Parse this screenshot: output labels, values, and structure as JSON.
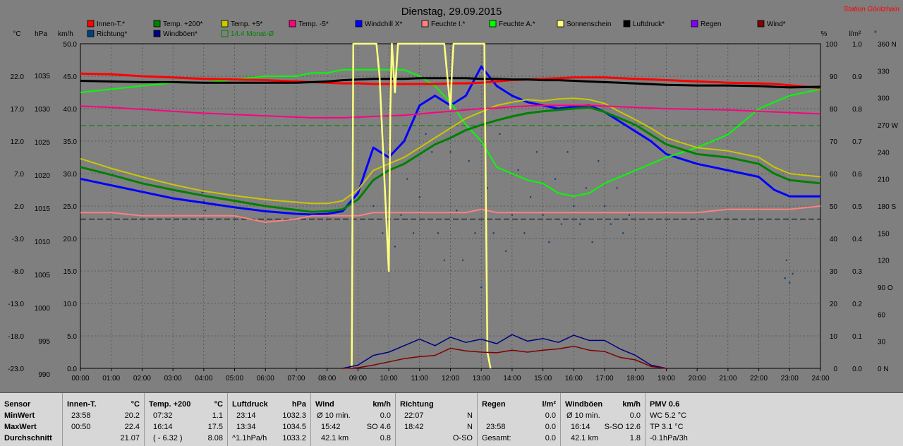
{
  "title": "Dienstag, 29.09.2015",
  "station": "Station Göritzhain",
  "axis_units": {
    "celsius": "°C",
    "hpa": "hPa",
    "kmh": "km/h",
    "percent": "%",
    "lm2": "l/m²",
    "deg": "°"
  },
  "left_axes": {
    "celsius": [
      "22.0",
      "17.0",
      "12.0",
      "7.0",
      "2.0",
      "-3.0",
      "-8.0",
      "-13.0",
      "-18.0",
      "-23.0"
    ],
    "hpa": [
      "1035",
      "1030",
      "1025",
      "1020",
      "1015",
      "1010",
      "1005",
      "1000",
      "995",
      "990"
    ],
    "kmh": [
      "50.0",
      "45.0",
      "40.0",
      "35.0",
      "30.0",
      "25.0",
      "20.0",
      "15.0",
      "10.0",
      "5.0",
      "0.0"
    ]
  },
  "right_axes": {
    "percent": [
      "100",
      "90",
      "80",
      "70",
      "60",
      "50",
      "40",
      "30",
      "20",
      "10",
      "0"
    ],
    "lm2": [
      "1.0",
      "0.9",
      "0.8",
      "0.7",
      "0.6",
      "0.5",
      "0.4",
      "0.3",
      "0.2",
      "0.1",
      "0.0"
    ],
    "deg": [
      "360 N",
      "330",
      "300",
      "270 W",
      "240",
      "210",
      "180 S",
      "150",
      "120",
      "90 O",
      "60",
      "30",
      "0 N"
    ]
  },
  "x_ticks": [
    "00:00",
    "01:00",
    "02:00",
    "03:00",
    "04:00",
    "05:00",
    "06:00",
    "07:00",
    "08:00",
    "09:00",
    "10:00",
    "11:00",
    "12:00",
    "13:00",
    "14:00",
    "15:00",
    "16:00",
    "17:00",
    "18:00",
    "19:00",
    "20:00",
    "21:00",
    "22:00",
    "23:00",
    "24:00"
  ],
  "legend": [
    {
      "name": "Innen-T.*",
      "color": "#ff0000"
    },
    {
      "name": "Temp. +200*",
      "color": "#008000"
    },
    {
      "name": "Temp. +5*",
      "color": "#c8c800"
    },
    {
      "name": "Temp. -5*",
      "color": "#ff0080"
    },
    {
      "name": "Windchill X*",
      "color": "#0000ff"
    },
    {
      "name": "Feuchte I.*",
      "color": "#ff8080"
    },
    {
      "name": "Feuchte A.*",
      "color": "#00ff00"
    },
    {
      "name": "Sonnenschein",
      "color": "#ffff80"
    },
    {
      "name": "Luftdruck*",
      "color": "#000000"
    },
    {
      "name": "Regen",
      "color": "#8000ff"
    },
    {
      "name": "Wind*",
      "color": "#800000"
    },
    {
      "name": "Richtung*",
      "color": "#004080"
    },
    {
      "name": "Windböen*",
      "color": "#000080"
    },
    {
      "name": "14.4 Monat-Ø",
      "color": "#008000"
    }
  ],
  "chart_data": {
    "type": "line",
    "title": "Dienstag, 29.09.2015",
    "xlabel": "",
    "ylabel": "°C",
    "x_hours": [
      0,
      1,
      2,
      3,
      4,
      5,
      6,
      7,
      7.5,
      8,
      8.5,
      9,
      9.5,
      10,
      10.5,
      11,
      11.5,
      12,
      12.5,
      13,
      13.5,
      14,
      14.5,
      15,
      15.5,
      16,
      16.5,
      17,
      17.5,
      18,
      18.5,
      19,
      20,
      21,
      22,
      22.5,
      23,
      24
    ],
    "ylim": [
      -23,
      27
    ],
    "series": [
      {
        "name": "Innen-T.*",
        "color": "#ff0000",
        "unit": "°C",
        "values": [
          22.4,
          22.3,
          22.0,
          21.8,
          21.6,
          21.5,
          21.4,
          21.2,
          21.1,
          21.0,
          20.9,
          20.9,
          20.8,
          20.8,
          20.8,
          20.8,
          20.8,
          20.9,
          20.9,
          21.0,
          21.2,
          21.4,
          21.5,
          21.6,
          21.7,
          21.8,
          21.8,
          21.8,
          21.7,
          21.6,
          21.5,
          21.4,
          21.2,
          21.0,
          20.9,
          20.8,
          20.6,
          20.2
        ]
      },
      {
        "name": "Temp. +200*",
        "color": "#008000",
        "unit": "°C",
        "values": [
          8.0,
          6.8,
          5.5,
          4.5,
          3.6,
          2.8,
          2.0,
          1.4,
          1.1,
          1.2,
          1.5,
          3.0,
          6.0,
          7.5,
          8.5,
          10.0,
          11.5,
          12.5,
          13.7,
          14.5,
          15.2,
          15.8,
          16.3,
          16.6,
          16.8,
          17.0,
          17.2,
          16.5,
          15.5,
          14.5,
          13.0,
          11.5,
          10.0,
          9.5,
          8.5,
          7.0,
          6.0,
          5.5
        ]
      },
      {
        "name": "Temp. +5*",
        "color": "#c8c800",
        "unit": "°C",
        "values": [
          9.3,
          7.8,
          6.5,
          5.3,
          4.3,
          3.6,
          3.0,
          2.6,
          2.4,
          2.4,
          2.8,
          4.5,
          7.5,
          8.5,
          9.5,
          11.0,
          12.5,
          14.0,
          15.5,
          16.5,
          17.5,
          18.0,
          18.4,
          18.2,
          18.5,
          18.6,
          18.4,
          17.8,
          16.5,
          15.3,
          14.0,
          12.5,
          11.0,
          10.5,
          9.5,
          8.0,
          7.0,
          6.5
        ]
      },
      {
        "name": "Temp. -5*",
        "color": "#ff0080",
        "unit": "°C",
        "values": [
          17.4,
          17.2,
          16.9,
          16.6,
          16.3,
          16.1,
          15.9,
          15.7,
          15.6,
          15.6,
          15.6,
          15.7,
          15.8,
          15.9,
          16.0,
          16.2,
          16.4,
          16.6,
          16.8,
          17.0,
          17.1,
          17.3,
          17.4,
          17.5,
          17.5,
          17.5,
          17.5,
          17.4,
          17.3,
          17.2,
          17.1,
          17.0,
          16.9,
          16.8,
          16.6,
          16.5,
          16.4,
          16.2
        ]
      },
      {
        "name": "Windchill X*",
        "color": "#0000ff",
        "unit": "°C",
        "values": [
          6.2,
          5.2,
          4.2,
          3.2,
          2.5,
          1.8,
          1.2,
          0.8,
          0.7,
          0.8,
          1.2,
          4.0,
          11.0,
          9.5,
          12.0,
          17.5,
          19.0,
          17.5,
          19.0,
          23.5,
          20.5,
          19.0,
          18.0,
          17.5,
          17.0,
          17.3,
          17.5,
          16.5,
          15.0,
          13.5,
          12.0,
          10.0,
          8.5,
          7.5,
          6.5,
          4.5,
          3.5,
          3.5
        ]
      },
      {
        "name": "Feuchte I.*",
        "color": "#ff8080",
        "unit": "%",
        "values": [
          48,
          48,
          47,
          47,
          47,
          47,
          45,
          46,
          47,
          47,
          47,
          47,
          48,
          48,
          48,
          48,
          48,
          48,
          48,
          49,
          48,
          48,
          48,
          48,
          48,
          48,
          48,
          48,
          48,
          48,
          48,
          48,
          48,
          49,
          49,
          49,
          49,
          50
        ]
      },
      {
        "name": "Feuchte A.*",
        "color": "#00ff00",
        "unit": "%",
        "values": [
          85,
          86,
          87,
          88,
          88,
          89,
          90,
          90,
          91,
          91,
          92,
          92,
          92,
          92,
          92,
          90,
          87,
          82,
          75,
          70,
          62,
          60,
          58,
          57,
          54,
          53,
          54,
          57,
          59,
          61,
          63,
          65,
          68,
          72,
          80,
          82,
          84,
          86
        ]
      },
      {
        "name": "Luftdruck*",
        "color": "#000000",
        "unit": "hPa",
        "values": [
          1034.2,
          1034.1,
          1034.0,
          1034.0,
          1033.9,
          1033.9,
          1033.9,
          1033.9,
          1034.0,
          1034.1,
          1034.3,
          1034.4,
          1034.5,
          1034.5,
          1034.5,
          1034.6,
          1034.6,
          1034.6,
          1034.6,
          1034.5,
          1034.5,
          1034.4,
          1034.4,
          1034.3,
          1034.3,
          1034.2,
          1034.1,
          1034.0,
          1033.9,
          1033.8,
          1033.7,
          1033.6,
          1033.5,
          1033.5,
          1033.4,
          1033.3,
          1033.2,
          1033.3
        ]
      }
    ],
    "sunshine": {
      "name": "Sonnenschein",
      "color": "#ffff80",
      "unit": "%",
      "x_hours": [
        8.8,
        8.85,
        9.6,
        9.7,
        9.9,
        10.0,
        10.05,
        10.1,
        10.2,
        10.3,
        11.8,
        11.9,
        12.0,
        12.05,
        12.1,
        13.1,
        13.2,
        13.3
      ],
      "values": [
        0,
        100,
        100,
        90,
        50,
        30,
        80,
        100,
        85,
        100,
        100,
        90,
        80,
        92,
        100,
        100,
        5,
        0
      ]
    },
    "gusts": {
      "name": "Windböen*",
      "color": "#000080",
      "unit": "km/h",
      "x_hours": [
        8.5,
        9,
        9.5,
        10,
        10.5,
        11,
        11.5,
        12,
        12.5,
        13,
        13.5,
        14,
        14.5,
        15,
        15.5,
        16,
        16.5,
        17,
        17.5,
        18,
        18.5,
        19
      ],
      "values": [
        0,
        0.5,
        2,
        2.5,
        3.5,
        4.5,
        3.5,
        4.8,
        4.0,
        4.5,
        3.8,
        5.2,
        4.2,
        4.6,
        4.0,
        5.1,
        4.3,
        4.3,
        3.0,
        2.0,
        0.5,
        0
      ]
    },
    "wind": {
      "name": "Wind*",
      "color": "#800000",
      "unit": "km/h",
      "x_hours": [
        8.5,
        9,
        9.5,
        10,
        10.5,
        11,
        11.5,
        12,
        12.5,
        13,
        13.5,
        14,
        14.5,
        15,
        15.5,
        16,
        16.5,
        17,
        17.5,
        18,
        18.5,
        19
      ],
      "values": [
        0,
        0.1,
        0.5,
        1.0,
        1.5,
        1.8,
        2.0,
        3.1,
        2.7,
        2.5,
        2.4,
        2.8,
        2.5,
        2.8,
        3.0,
        3.4,
        2.8,
        2.6,
        1.7,
        1.3,
        0.3,
        0
      ]
    },
    "direction_points": {
      "name": "Richtung*",
      "unit": "°",
      "points": [
        [
          3.95,
          195
        ],
        [
          4.0,
          185
        ],
        [
          4.05,
          175
        ],
        [
          9.5,
          180
        ],
        [
          9.8,
          150
        ],
        [
          10.0,
          240
        ],
        [
          10.2,
          135
        ],
        [
          10.4,
          170
        ],
        [
          10.6,
          210
        ],
        [
          10.8,
          150
        ],
        [
          11.0,
          190
        ],
        [
          11.2,
          260
        ],
        [
          11.4,
          240
        ],
        [
          11.6,
          150
        ],
        [
          11.8,
          120
        ],
        [
          12.0,
          240
        ],
        [
          12.2,
          175
        ],
        [
          12.4,
          120
        ],
        [
          12.6,
          230
        ],
        [
          12.8,
          150
        ],
        [
          13.0,
          90
        ],
        [
          13.2,
          200
        ],
        [
          13.4,
          150
        ],
        [
          13.6,
          260
        ],
        [
          13.8,
          130
        ],
        [
          14.0,
          170
        ],
        [
          14.2,
          220
        ],
        [
          14.4,
          150
        ],
        [
          14.6,
          190
        ],
        [
          14.8,
          240
        ],
        [
          15.0,
          170
        ],
        [
          15.2,
          140
        ],
        [
          15.4,
          210
        ],
        [
          15.6,
          160
        ],
        [
          15.8,
          240
        ],
        [
          16.0,
          180
        ],
        [
          16.2,
          160
        ],
        [
          16.4,
          200
        ],
        [
          16.6,
          140
        ],
        [
          16.8,
          230
        ],
        [
          17.0,
          180
        ],
        [
          17.2,
          160
        ],
        [
          17.4,
          200
        ],
        [
          17.6,
          150
        ],
        [
          17.8,
          170
        ],
        [
          22.85,
          100
        ],
        [
          22.9,
          120
        ],
        [
          23.0,
          95
        ],
        [
          23.1,
          105
        ]
      ]
    },
    "reference_lines": [
      {
        "name": "14.4 Monat-Ø",
        "unit": "°C",
        "value": 14.4,
        "color": "#008000"
      },
      {
        "name": "baseline",
        "unit": "°C",
        "value": 0.0,
        "color": "#000000"
      }
    ]
  },
  "stats": {
    "sensor": {
      "header": "Sensor",
      "rows": [
        "MinWert",
        "MaxWert",
        "Durchschnitt"
      ]
    },
    "innen": {
      "header": "Innen-T.",
      "unit": "°C",
      "rows": [
        [
          "23:58",
          "20.2"
        ],
        [
          "00:50",
          "22.4"
        ],
        [
          "",
          "21.07"
        ]
      ]
    },
    "temp200": {
      "header": "Temp. +200",
      "unit": "°C",
      "rows": [
        [
          "07:32",
          "1.1"
        ],
        [
          "16:14",
          "17.5"
        ],
        [
          "( - 6.32 )",
          "8.08"
        ]
      ]
    },
    "luftdruck": {
      "header": "Luftdruck",
      "unit": "hPa",
      "rows": [
        [
          "23:14",
          "1032.3"
        ],
        [
          "13:34",
          "1034.5"
        ],
        [
          "^1.1hPa/h",
          "1033.2"
        ]
      ]
    },
    "wind": {
      "header": "Wind",
      "unit": "km/h",
      "rows": [
        [
          "Ø 10 min.",
          "0.0"
        ],
        [
          "15:42",
          "SO 4.6"
        ],
        [
          "42.1 km",
          "0.8"
        ]
      ]
    },
    "richtung": {
      "header": "Richtung",
      "rows": [
        [
          "22:07",
          "N"
        ],
        [
          "18:42",
          "N"
        ],
        [
          "",
          "O-SO"
        ]
      ]
    },
    "regen": {
      "header": "Regen",
      "unit": "l/m²",
      "rows": [
        [
          "",
          "0.0"
        ],
        [
          "23:58",
          "0.0"
        ],
        [
          "Gesamt:",
          "0.0"
        ]
      ]
    },
    "windboeen": {
      "header": "Windböen",
      "unit": "km/h",
      "rows": [
        [
          "Ø 10 min.",
          "0.0"
        ],
        [
          "16:14",
          "S-SO 12.6"
        ],
        [
          "42.1 km",
          "1.8"
        ]
      ]
    },
    "pmv": {
      "header": "PMV 0.6",
      "rows": [
        "WC 5.2 °C",
        "TP 3.1 °C",
        "-0.1hPa/3h"
      ]
    }
  }
}
